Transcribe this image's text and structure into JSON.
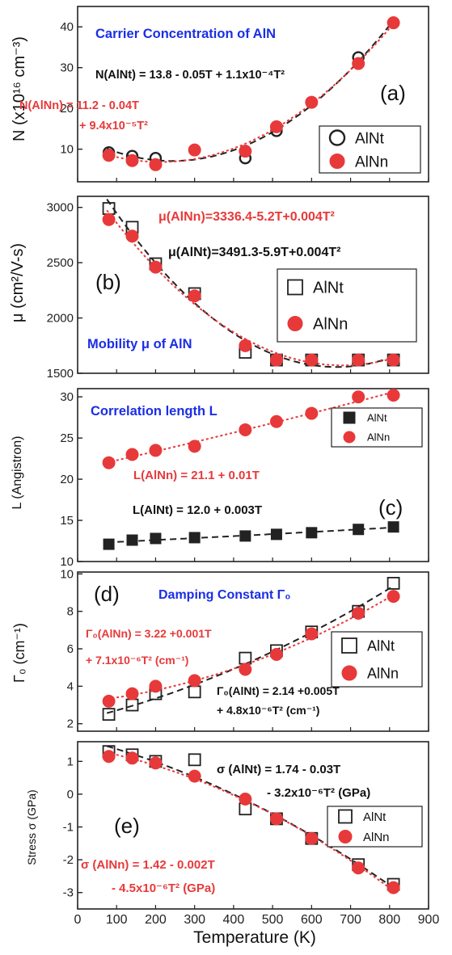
{
  "figure": {
    "xlabel": "Temperature (K)",
    "xticks": [
      "0",
      "100",
      "200",
      "300",
      "400",
      "500",
      "600",
      "700",
      "800",
      "900"
    ]
  },
  "colors": {
    "AlNt": "#222222",
    "AlNn": "#e8393a",
    "title_blue": "#1a2ee6",
    "fit_black": "#111111",
    "fit_red": "#e8393a"
  },
  "chart_data": [
    {
      "type": "scatter",
      "panel": "(a)",
      "title": "Carrier Concentration of AlN",
      "ylabel": "N (x10¹⁶ cm⁻³)",
      "xlim": [
        0,
        900
      ],
      "ylim": [
        2,
        45
      ],
      "yticks": [
        "10",
        "20",
        "30",
        "40"
      ],
      "series": [
        {
          "name": "AlNt",
          "marker": "open-circle",
          "x": [
            80,
            140,
            200,
            300,
            430,
            510,
            600,
            720,
            810
          ],
          "y": [
            9.2,
            8.3,
            7.8,
            9.8,
            7.8,
            14.5,
            21.5,
            32.5,
            41
          ]
        },
        {
          "name": "AlNn",
          "marker": "filled-circle",
          "x": [
            80,
            140,
            200,
            300,
            430,
            510,
            600,
            720,
            810
          ],
          "y": [
            8.5,
            7.2,
            6.2,
            9.8,
            9.5,
            15.5,
            21.5,
            31,
            41
          ]
        }
      ],
      "fits": [
        {
          "lines": [
            "N(AlNt) = 13.8 - 0.05T + 1.1x10⁻⁴T²"
          ],
          "color": "fit_black"
        },
        {
          "lines": [
            "N(AlNn) = 11.2 - 0.04T",
            "+ 9.4x10⁻⁵T²"
          ],
          "color": "fit_red"
        }
      ],
      "legend": {
        "labels": [
          "AlNt",
          "AlNn"
        ],
        "placement": "right"
      }
    },
    {
      "type": "scatter",
      "panel": "(b)",
      "title": "Mobility μ of AlN",
      "ylabel": "μ (cm²/V-s)",
      "xlim": [
        0,
        900
      ],
      "ylim": [
        1500,
        3100
      ],
      "yticks": [
        "1500",
        "2000",
        "2500",
        "3000"
      ],
      "series": [
        {
          "name": "AlNt",
          "marker": "open-square",
          "x": [
            80,
            140,
            200,
            300,
            430,
            510,
            600,
            720,
            810
          ],
          "y": [
            2990,
            2820,
            2490,
            2220,
            1690,
            1620,
            1620,
            1620,
            1620
          ]
        },
        {
          "name": "AlNn",
          "marker": "filled-circle",
          "x": [
            80,
            140,
            200,
            300,
            430,
            510,
            600,
            720,
            810
          ],
          "y": [
            2890,
            2740,
            2460,
            2200,
            1750,
            1620,
            1620,
            1620,
            1620
          ]
        }
      ],
      "fits": [
        {
          "lines": [
            "μ(AlNn)=3336.4-5.2T+0.004T²"
          ],
          "color": "fit_red"
        },
        {
          "lines": [
            "μ(AlNt)=3491.3-5.9T+0.004T²"
          ],
          "color": "fit_black"
        }
      ],
      "legend": {
        "labels": [
          "AlNt",
          "AlNn"
        ],
        "placement": "right"
      }
    },
    {
      "type": "scatter",
      "panel": "(c)",
      "title": "Correlation length L",
      "ylabel": "L (Angistron)",
      "xlim": [
        0,
        900
      ],
      "ylim": [
        10,
        31
      ],
      "yticks": [
        "10",
        "15",
        "20",
        "25",
        "30"
      ],
      "series": [
        {
          "name": "AlNt",
          "marker": "filled-square",
          "x": [
            80,
            140,
            200,
            300,
            430,
            510,
            600,
            720,
            810
          ],
          "y": [
            12.1,
            12.6,
            12.8,
            12.9,
            13.1,
            13.3,
            13.5,
            13.9,
            14.2
          ]
        },
        {
          "name": "AlNn",
          "marker": "filled-circle",
          "x": [
            80,
            140,
            200,
            300,
            430,
            510,
            600,
            720,
            810
          ],
          "y": [
            22,
            23,
            23.5,
            24,
            26,
            27,
            28,
            30,
            30.2
          ]
        }
      ],
      "fits": [
        {
          "lines": [
            "L(AlNn) = 21.1 + 0.01T"
          ],
          "color": "fit_red"
        },
        {
          "lines": [
            "L(AlNt) = 12.0 + 0.003T"
          ],
          "color": "fit_black"
        }
      ],
      "legend": {
        "labels": [
          "AlNt",
          "AlNn"
        ],
        "placement": "top-right"
      }
    },
    {
      "type": "scatter",
      "panel": "(d)",
      "title": "Damping Constant Γ₀",
      "ylabel": "Γ₀ (cm⁻¹)",
      "xlim": [
        0,
        900
      ],
      "ylim": [
        1.6,
        10.1
      ],
      "yticks": [
        "2",
        "4",
        "6",
        "8",
        "10"
      ],
      "series": [
        {
          "name": "AlNt",
          "marker": "open-square",
          "x": [
            80,
            140,
            200,
            300,
            430,
            510,
            600,
            720,
            810
          ],
          "y": [
            2.5,
            3.0,
            3.6,
            3.7,
            5.5,
            5.9,
            6.9,
            8.0,
            9.5
          ]
        },
        {
          "name": "AlNn",
          "marker": "filled-circle",
          "x": [
            80,
            140,
            200,
            300,
            430,
            510,
            600,
            720,
            810
          ],
          "y": [
            3.2,
            3.6,
            4.0,
            4.3,
            4.9,
            5.7,
            6.8,
            7.9,
            8.8
          ]
        }
      ],
      "fits": [
        {
          "lines": [
            "Γ₀(AlNn) = 3.22 +0.001T",
            "+ 7.1x10⁻⁶T² (cm⁻¹)"
          ],
          "color": "fit_red"
        },
        {
          "lines": [
            "Γ₀(AlNt) = 2.14 +0.005T",
            "+ 4.8x10⁻⁶T² (cm⁻¹)"
          ],
          "color": "fit_black"
        }
      ],
      "legend": {
        "labels": [
          "AlNt",
          "AlNn"
        ],
        "placement": "right"
      }
    },
    {
      "type": "scatter",
      "panel": "(e)",
      "ylabel": "Stress σ (GPa)",
      "xlim": [
        0,
        900
      ],
      "ylim": [
        -3.5,
        1.6
      ],
      "yticks": [
        "-3",
        "-2",
        "-1",
        "0",
        "1"
      ],
      "series": [
        {
          "name": "AlNt",
          "marker": "open-square",
          "x": [
            80,
            140,
            200,
            300,
            430,
            510,
            600,
            720,
            810
          ],
          "y": [
            1.3,
            1.2,
            1.0,
            1.05,
            -0.45,
            -0.75,
            -1.35,
            -2.15,
            -2.75
          ]
        },
        {
          "name": "AlNn",
          "marker": "filled-circle",
          "x": [
            80,
            140,
            200,
            300,
            430,
            510,
            600,
            720,
            810
          ],
          "y": [
            1.15,
            1.1,
            0.95,
            0.55,
            -0.15,
            -0.75,
            -1.35,
            -2.25,
            -2.85
          ]
        }
      ],
      "fits": [
        {
          "lines": [
            "σ (AlNt) = 1.74 - 0.03T",
            "- 3.2x10⁻⁶T² (GPa)"
          ],
          "color": "fit_black"
        },
        {
          "lines": [
            "σ (AlNn) = 1.42 - 0.002T",
            "- 4.5x10⁻⁶T² (GPa)"
          ],
          "color": "fit_red"
        }
      ],
      "legend": {
        "labels": [
          "AlNt",
          "AlNn"
        ],
        "placement": "right"
      }
    }
  ]
}
